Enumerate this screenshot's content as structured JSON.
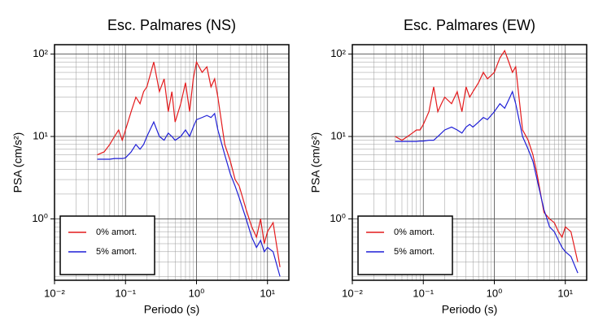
{
  "chart_data": [
    {
      "type": "line",
      "title": "Esc. Palmares (NS)",
      "xlabel": "Periodo (s)",
      "ylabel": "PSA (cm/s²)",
      "xscale": "log",
      "yscale": "log",
      "grid": true,
      "legend": "lower left",
      "xlim": [
        0.01,
        20
      ],
      "ylim": [
        0.18,
        130
      ],
      "xticks": [
        {
          "value": 0.01,
          "label": "10⁻²"
        },
        {
          "value": 0.1,
          "label": "10⁻¹"
        },
        {
          "value": 1,
          "label": "10⁰"
        },
        {
          "value": 10,
          "label": "10¹"
        }
      ],
      "yticks": [
        {
          "value": 1,
          "label": "10⁰"
        },
        {
          "value": 10,
          "label": "10¹"
        },
        {
          "value": 100,
          "label": "10²"
        }
      ],
      "x": [
        0.04,
        0.05,
        0.06,
        0.07,
        0.08,
        0.09,
        0.1,
        0.12,
        0.14,
        0.16,
        0.18,
        0.2,
        0.25,
        0.3,
        0.35,
        0.4,
        0.45,
        0.5,
        0.6,
        0.7,
        0.8,
        0.9,
        1.0,
        1.2,
        1.4,
        1.6,
        1.8,
        2.0,
        2.5,
        3,
        3.5,
        4,
        5,
        6,
        7,
        8,
        9,
        10,
        12,
        15
      ],
      "series": [
        {
          "name": "0% amort.",
          "color": "#e41a1c",
          "values": [
            6,
            6.5,
            8,
            10,
            12,
            9,
            12,
            20,
            30,
            25,
            35,
            40,
            80,
            35,
            50,
            20,
            35,
            15,
            25,
            45,
            20,
            50,
            80,
            60,
            70,
            40,
            50,
            30,
            8,
            5,
            3,
            2.5,
            1.3,
            0.8,
            0.6,
            1.0,
            0.5,
            0.7,
            0.9,
            0.26
          ]
        },
        {
          "name": "5% amort.",
          "color": "#1f1fd6",
          "values": [
            5.3,
            5.3,
            5.3,
            5.4,
            5.4,
            5.4,
            5.5,
            6.5,
            8,
            7,
            8,
            10,
            15,
            10,
            9,
            11,
            10,
            9,
            10,
            12,
            10,
            13,
            16,
            17,
            18,
            17,
            19,
            12,
            6,
            3.5,
            2.5,
            1.8,
            1.0,
            0.6,
            0.45,
            0.55,
            0.4,
            0.45,
            0.4,
            0.2
          ]
        }
      ]
    },
    {
      "type": "line",
      "title": "Esc. Palmares (EW)",
      "xlabel": "Periodo (s)",
      "ylabel": "PSA (cm/s²)",
      "xscale": "log",
      "yscale": "log",
      "grid": true,
      "legend": "lower left",
      "xlim": [
        0.01,
        20
      ],
      "ylim": [
        0.18,
        130
      ],
      "xticks": [
        {
          "value": 0.01,
          "label": "10⁻²"
        },
        {
          "value": 0.1,
          "label": "10⁻¹"
        },
        {
          "value": 1,
          "label": "10⁰"
        },
        {
          "value": 10,
          "label": "10¹"
        }
      ],
      "yticks": [
        {
          "value": 1,
          "label": "10⁰"
        },
        {
          "value": 10,
          "label": "10¹"
        },
        {
          "value": 100,
          "label": "10²"
        }
      ],
      "x": [
        0.04,
        0.05,
        0.06,
        0.07,
        0.08,
        0.09,
        0.1,
        0.12,
        0.14,
        0.16,
        0.18,
        0.2,
        0.25,
        0.3,
        0.35,
        0.4,
        0.45,
        0.5,
        0.6,
        0.7,
        0.8,
        0.9,
        1.0,
        1.2,
        1.4,
        1.6,
        1.8,
        2.0,
        2.5,
        3,
        3.5,
        4,
        5,
        6,
        7,
        8,
        9,
        10,
        12,
        15
      ],
      "series": [
        {
          "name": "0% amort.",
          "color": "#e41a1c",
          "values": [
            10,
            9,
            10,
            11,
            12,
            12,
            14,
            20,
            40,
            20,
            25,
            30,
            25,
            35,
            20,
            40,
            30,
            35,
            45,
            60,
            50,
            55,
            60,
            90,
            110,
            80,
            60,
            70,
            12,
            9,
            6,
            3.5,
            1.2,
            1.0,
            0.9,
            0.7,
            0.6,
            0.8,
            0.7,
            0.3
          ]
        },
        {
          "name": "5% amort.",
          "color": "#1f1fd6",
          "values": [
            8.7,
            8.7,
            8.7,
            8.7,
            8.7,
            8.8,
            8.8,
            9,
            9,
            10,
            11,
            12,
            13,
            12,
            11,
            13,
            14,
            13,
            15,
            17,
            16,
            18,
            20,
            25,
            22,
            28,
            35,
            25,
            10,
            7,
            5,
            3,
            1.3,
            0.8,
            0.7,
            0.55,
            0.45,
            0.4,
            0.35,
            0.22
          ]
        }
      ]
    }
  ]
}
